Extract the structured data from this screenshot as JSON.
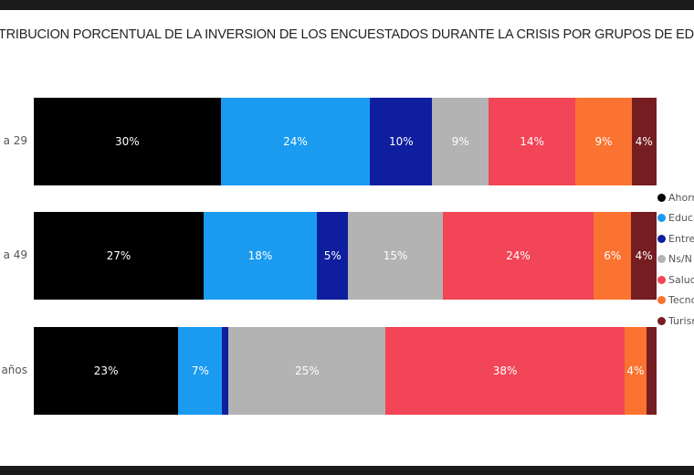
{
  "chart_data": {
    "type": "bar",
    "orientation": "horizontal-stacked-100",
    "title": "TRIBUCION PORCENTUAL DE LA INVERSION DE LOS ENCUESTADOS DURANTE LA CRISIS POR GRUPOS DE ED",
    "categories": [
      "a 29",
      "a 49",
      "años"
    ],
    "series": [
      {
        "name": "Ahorr",
        "color": "#000000",
        "values": [
          30,
          27,
          23
        ],
        "labels": [
          "30%",
          "27%",
          "23%"
        ]
      },
      {
        "name": "Educa",
        "color": "#1a9bf0",
        "values": [
          24,
          18,
          7
        ],
        "labels": [
          "24%",
          "18%",
          "7%"
        ]
      },
      {
        "name": "Entret",
        "color": "#0f1e9e",
        "values": [
          10,
          5,
          1
        ],
        "labels": [
          "10%",
          "5%",
          ""
        ]
      },
      {
        "name": "Ns/N",
        "color": "#b3b3b3",
        "values": [
          9,
          15,
          25
        ],
        "labels": [
          "9%",
          "15%",
          "25%"
        ]
      },
      {
        "name": "Salud",
        "color": "#f24557",
        "values": [
          14,
          24,
          38
        ],
        "labels": [
          "14%",
          "24%",
          "38%"
        ]
      },
      {
        "name": "Tecno",
        "color": "#fb7330",
        "values": [
          9,
          6,
          3.5
        ],
        "labels": [
          "9%",
          "6%",
          "4%"
        ]
      },
      {
        "name": "Turism",
        "color": "#761d22",
        "values": [
          4,
          4,
          1.6
        ],
        "labels": [
          "4%",
          "4%",
          ""
        ]
      }
    ],
    "legend_position": "right",
    "grid": false
  }
}
